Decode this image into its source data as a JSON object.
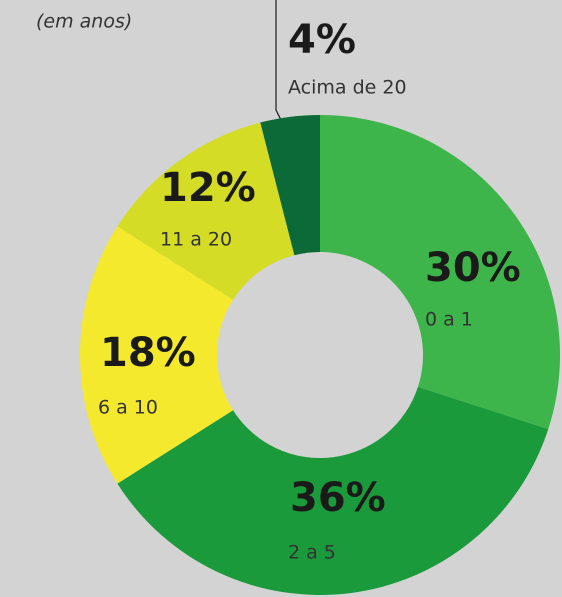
{
  "chart_data": {
    "type": "donut",
    "subtitle": "(em anos)",
    "categories": [
      "0 a 1",
      "2 a 5",
      "6 a 10",
      "11 a 20",
      "Acima de 20"
    ],
    "values": [
      30,
      36,
      18,
      12,
      4
    ],
    "value_labels": [
      "30%",
      "36%",
      "18%",
      "12%",
      "4%"
    ],
    "colors": [
      "#3db54a",
      "#1b9a3b",
      "#f5e92d",
      "#d5dc25",
      "#0c6a38"
    ]
  }
}
